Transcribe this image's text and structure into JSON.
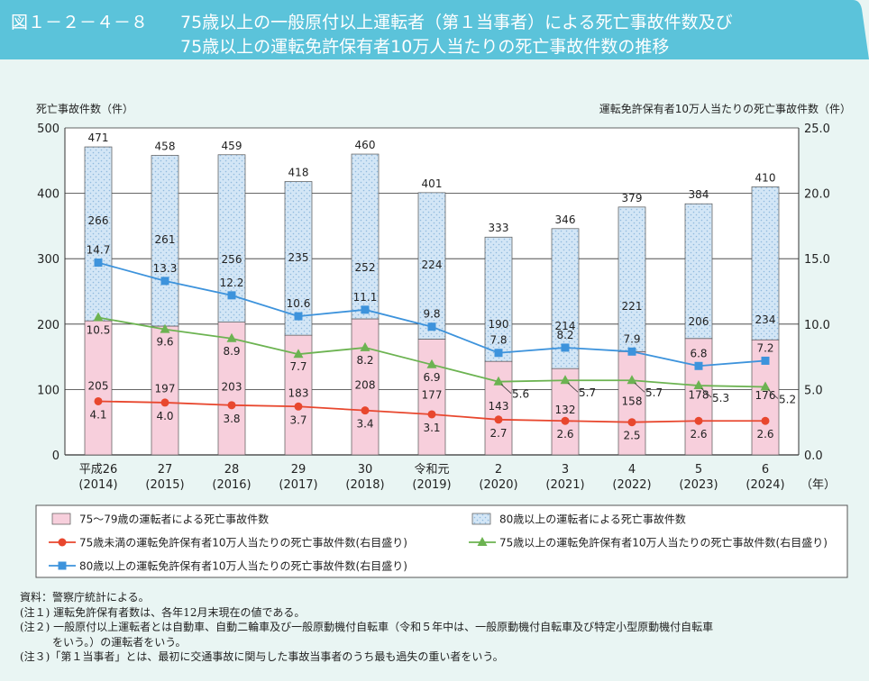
{
  "header": {
    "figure_no": "図１－２－４－８",
    "title_line1": "75歳以上の一般原付以上運転者（第１当事者）による死亡事故件数及び",
    "title_line2": "75歳以上の運転免許保有者10万人当たりの死亡事故件数の推移"
  },
  "colors": {
    "header": "#5bc3da",
    "background": "#e9f5f3",
    "pink": "#f7cfdc",
    "light_blue": "#d3e6f6",
    "red": "#e8472e",
    "green": "#6cb351",
    "blue": "#3d93dc"
  },
  "chart_data": {
    "type": "bar",
    "stacked": true,
    "ylabel": "死亡事故件数（件）",
    "y2label": "運転免許保有者10万人当たりの死亡事故件数（件）",
    "x_unit": "（年）",
    "ylim": [
      0,
      500
    ],
    "y_ticks": [
      "0",
      "100",
      "200",
      "300",
      "400",
      "500"
    ],
    "y2lim": [
      0,
      25
    ],
    "y2_ticks": [
      "0.0",
      "5.0",
      "10.0",
      "15.0",
      "20.0",
      "25.0"
    ],
    "grid": true,
    "categories": [
      [
        "平成26",
        "(2014)"
      ],
      [
        "27",
        "(2015)"
      ],
      [
        "28",
        "(2016)"
      ],
      [
        "29",
        "(2017)"
      ],
      [
        "30",
        "(2018)"
      ],
      [
        "令和元",
        "(2019)"
      ],
      [
        "2",
        "(2020)"
      ],
      [
        "3",
        "(2021)"
      ],
      [
        "4",
        "(2022)"
      ],
      [
        "5",
        "(2023)"
      ],
      [
        "6",
        "(2024)"
      ]
    ],
    "totals": [
      471,
      458,
      459,
      418,
      460,
      401,
      333,
      346,
      379,
      384,
      410
    ],
    "series": [
      {
        "name": "75～79歳の運転者による死亡事故件数",
        "kind": "bar",
        "values": [
          205,
          197,
          203,
          183,
          208,
          177,
          143,
          132,
          158,
          178,
          176
        ]
      },
      {
        "name": "80歳以上の運転者による死亡事故件数",
        "kind": "bar",
        "values": [
          266,
          261,
          256,
          235,
          252,
          224,
          190,
          214,
          221,
          206,
          234
        ]
      },
      {
        "name": "75歳未満の運転免許保有者10万人当たりの死亡事故件数(右目盛り)",
        "kind": "line",
        "axis": "right",
        "marker": "circle",
        "values": [
          4.1,
          4.0,
          3.8,
          3.7,
          3.4,
          3.1,
          2.7,
          2.6,
          2.5,
          2.6,
          2.6
        ]
      },
      {
        "name": "75歳以上の運転免許保有者10万人当たりの死亡事故件数(右目盛り)",
        "kind": "line",
        "axis": "right",
        "marker": "triangle",
        "values": [
          10.5,
          9.6,
          8.9,
          7.7,
          8.2,
          6.9,
          5.6,
          5.7,
          5.7,
          5.3,
          5.2
        ]
      },
      {
        "name": "80歳以上の運転免許保有者10万人当たりの死亡事故件数(右目盛り)",
        "kind": "line",
        "axis": "right",
        "marker": "square",
        "values": [
          14.7,
          13.3,
          12.2,
          10.6,
          11.1,
          9.8,
          7.8,
          8.2,
          7.9,
          6.8,
          7.2
        ]
      }
    ],
    "legend_placement": "bottom"
  },
  "notes": [
    "資料：警察庁統計による。",
    "(注１) 運転免許保有者数は、各年12月末現在の値である。",
    "(注２) 一般原付以上運転者とは自動車、自動二輪車及び一般原動機付自転車（令和５年中は、一般原動機付自転車及び特定小型原動機付自転車",
    "　　　をいう。）の運転者をいう。",
    "(注３)「第１当事者」とは、最初に交通事故に関与した事故当事者のうち最も過失の重い者をいう。"
  ]
}
